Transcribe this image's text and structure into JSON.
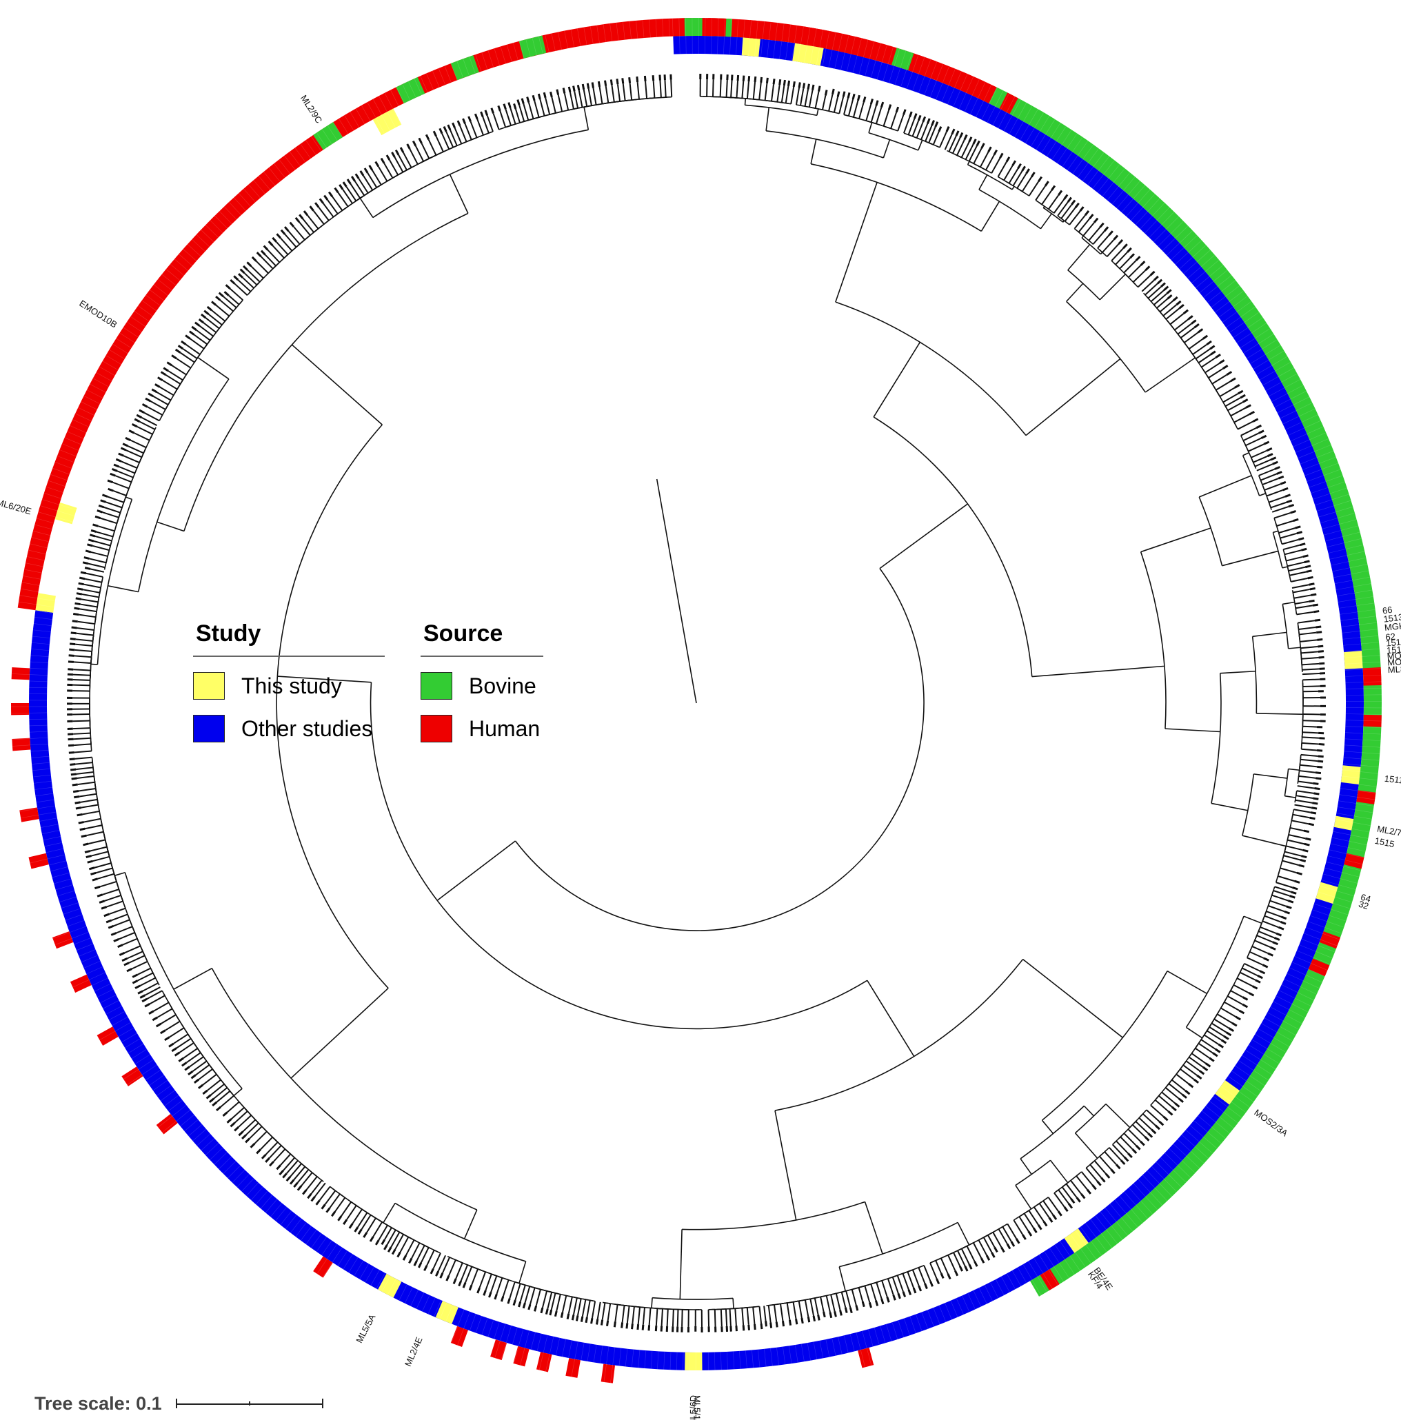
{
  "figure": {
    "colors": {
      "this_study": "#ffff66",
      "other_studies": "#0000ee",
      "bovine": "#33cc33",
      "human": "#ee0000",
      "branch": "#111111"
    }
  },
  "legend": {
    "study": {
      "title": "Study",
      "items": [
        {
          "label": "This study",
          "color": "#ffff66"
        },
        {
          "label": "Other studies",
          "color": "#0000ee"
        }
      ]
    },
    "source": {
      "title": "Source",
      "items": [
        {
          "label": "Bovine",
          "color": "#33cc33"
        },
        {
          "label": "Human",
          "color": "#ee0000"
        }
      ]
    }
  },
  "tree_scale": {
    "label": "Tree scale: 0.1"
  },
  "isolate_labels": [
    "ML2/9C",
    "EMOD10B",
    "ML6/20E",
    "66",
    "1513",
    "MGKF1",
    "62",
    "1512",
    "1514A",
    "MOS3/1A",
    "MOS4/9A",
    "ML8/11A",
    "1511",
    "ML2/7C",
    "1515",
    "64",
    "32",
    "MOS2/3A",
    "BE/4E",
    "KF/4",
    "ML5/6D",
    "ML5/10A",
    "ML2/4E",
    "ML5/5A"
  ],
  "ring_segments": {
    "study": [
      [
        -92,
        188,
        "other"
      ],
      [
        188,
        189.5,
        "this"
      ],
      [
        241,
        243,
        "this"
      ],
      [
        -86,
        -84.5,
        "this"
      ],
      [
        -81.5,
        -79,
        "this"
      ],
      [
        -4.5,
        -3,
        "this"
      ],
      [
        5.5,
        7,
        "this"
      ],
      [
        10,
        11,
        "this"
      ],
      [
        16,
        17.5,
        "this"
      ],
      [
        35.5,
        37,
        "this"
      ],
      [
        54,
        55.5,
        "this"
      ],
      [
        89.5,
        91,
        "this"
      ],
      [
        111.5,
        113,
        "this"
      ],
      [
        117,
        118.5,
        "this"
      ],
      [
        196,
        197.5,
        "this"
      ],
      [
        -83.5,
        -82.8,
        "other"
      ]
    ],
    "source": [
      [
        188,
        296,
        "human"
      ],
      [
        236,
        238,
        "bovine"
      ],
      [
        244,
        246,
        "bovine"
      ],
      [
        249,
        251,
        "bovine"
      ],
      [
        255,
        257,
        "bovine"
      ],
      [
        269,
        270.5,
        "bovine"
      ],
      [
        271.5,
        273,
        "bovine"
      ],
      [
        287,
        288.5,
        "bovine"
      ],
      [
        -60,
        -58.5,
        "bovine"
      ],
      [
        -56,
        -54.5,
        "bovine"
      ],
      [
        -47,
        -45,
        "bovine"
      ],
      [
        296,
        420,
        "bovine"
      ],
      [
        -89,
        -87.5,
        "human"
      ],
      [
        -85.5,
        -84.5,
        "human"
      ],
      [
        -81,
        -75,
        "human"
      ],
      [
        -71,
        -69.5,
        "human"
      ],
      [
        -63,
        -62,
        "human"
      ],
      [
        -3,
        -1.5,
        "human"
      ],
      [
        1,
        2,
        "human"
      ],
      [
        7.5,
        8.5,
        "human"
      ],
      [
        13,
        14,
        "human"
      ],
      [
        20,
        21,
        "human"
      ],
      [
        22.5,
        23.5,
        "human"
      ],
      [
        58,
        59,
        "human"
      ],
      [
        75,
        76,
        "human"
      ],
      [
        97,
        98,
        "human"
      ],
      [
        100,
        101,
        "human"
      ],
      [
        102.5,
        103.5,
        "human"
      ],
      [
        104.5,
        105.5,
        "human"
      ],
      [
        106.5,
        107.5,
        "human"
      ],
      [
        110,
        111,
        "human"
      ],
      [
        123,
        124,
        "human"
      ],
      [
        141,
        142,
        "human"
      ],
      [
        146,
        147,
        "human"
      ],
      [
        150,
        151,
        "human"
      ],
      [
        155,
        156,
        "human"
      ],
      [
        159,
        160,
        "human"
      ],
      [
        166,
        167,
        "human"
      ],
      [
        170,
        171,
        "human"
      ],
      [
        176,
        177,
        "human"
      ],
      [
        179,
        180,
        "human"
      ],
      [
        182,
        183,
        "human"
      ]
    ]
  }
}
